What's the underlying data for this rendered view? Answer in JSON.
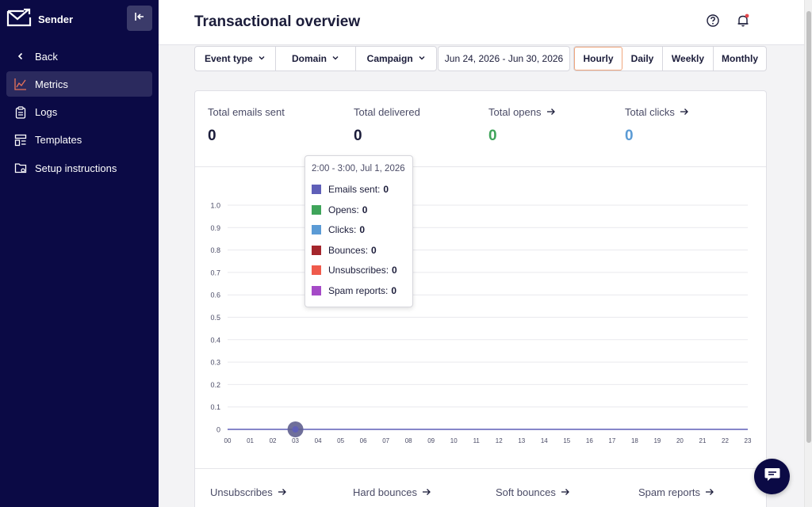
{
  "sidebar": {
    "brand": "Sender",
    "items": [
      {
        "label": "Back",
        "icon": "chevron-left-icon"
      },
      {
        "label": "Metrics",
        "icon": "chart-icon",
        "active": true
      },
      {
        "label": "Logs",
        "icon": "clipboard-icon"
      },
      {
        "label": "Templates",
        "icon": "template-icon"
      },
      {
        "label": "Setup instructions",
        "icon": "folder-settings-icon"
      }
    ]
  },
  "header": {
    "title": "Transactional overview"
  },
  "filters": {
    "event_type": "Event type",
    "domain": "Domain",
    "campaign": "Campaign",
    "date_range": "Jun 24, 2026 - Jun 30, 2026",
    "periods": [
      "Hourly",
      "Daily",
      "Weekly",
      "Monthly"
    ],
    "active_period": "Hourly"
  },
  "stats": [
    {
      "label": "Total emails sent",
      "value": "0",
      "arrow": false,
      "color": "#1b1c3a"
    },
    {
      "label": "Total delivered",
      "value": "0",
      "arrow": false,
      "color": "#1b1c3a"
    },
    {
      "label": "Total opens",
      "value": "0",
      "arrow": true,
      "color": "#3fa45a"
    },
    {
      "label": "Total clicks",
      "value": "0",
      "arrow": true,
      "color": "#5b9bd5"
    }
  ],
  "tooltip": {
    "title": "2:00 - 3:00, Jul 1, 2026",
    "rows": [
      {
        "label": "Emails sent:",
        "value": "0",
        "color": "#5f5fb8"
      },
      {
        "label": "Opens:",
        "value": "0",
        "color": "#3fa45a"
      },
      {
        "label": "Clicks:",
        "value": "0",
        "color": "#5b9bd5"
      },
      {
        "label": "Bounces:",
        "value": "0",
        "color": "#a4262c"
      },
      {
        "label": "Unsubscribes:",
        "value": "0",
        "color": "#ef5a4c"
      },
      {
        "label": "Spam reports:",
        "value": "0",
        "color": "#a54ac7"
      }
    ]
  },
  "bottom_stats": [
    "Unsubscribes",
    "Hard bounces",
    "Soft bounces",
    "Spam reports"
  ],
  "chart_data": {
    "type": "line",
    "x": [
      "00",
      "01",
      "02",
      "03",
      "04",
      "05",
      "06",
      "07",
      "08",
      "09",
      "10",
      "11",
      "12",
      "13",
      "14",
      "15",
      "16",
      "17",
      "18",
      "19",
      "20",
      "21",
      "22",
      "23"
    ],
    "series": [
      {
        "name": "Emails sent",
        "values": [
          0,
          0,
          0,
          0,
          0,
          0,
          0,
          0,
          0,
          0,
          0,
          0,
          0,
          0,
          0,
          0,
          0,
          0,
          0,
          0,
          0,
          0,
          0,
          0
        ]
      }
    ],
    "y_ticks": [
      "0",
      "0.1",
      "0.2",
      "0.3",
      "0.4",
      "0.5",
      "0.6",
      "0.7",
      "0.8",
      "0.9",
      "1.0"
    ],
    "ylim": [
      0,
      1
    ],
    "highlighted_index": 3,
    "grid": true,
    "line_color": "#5f5fb8"
  }
}
